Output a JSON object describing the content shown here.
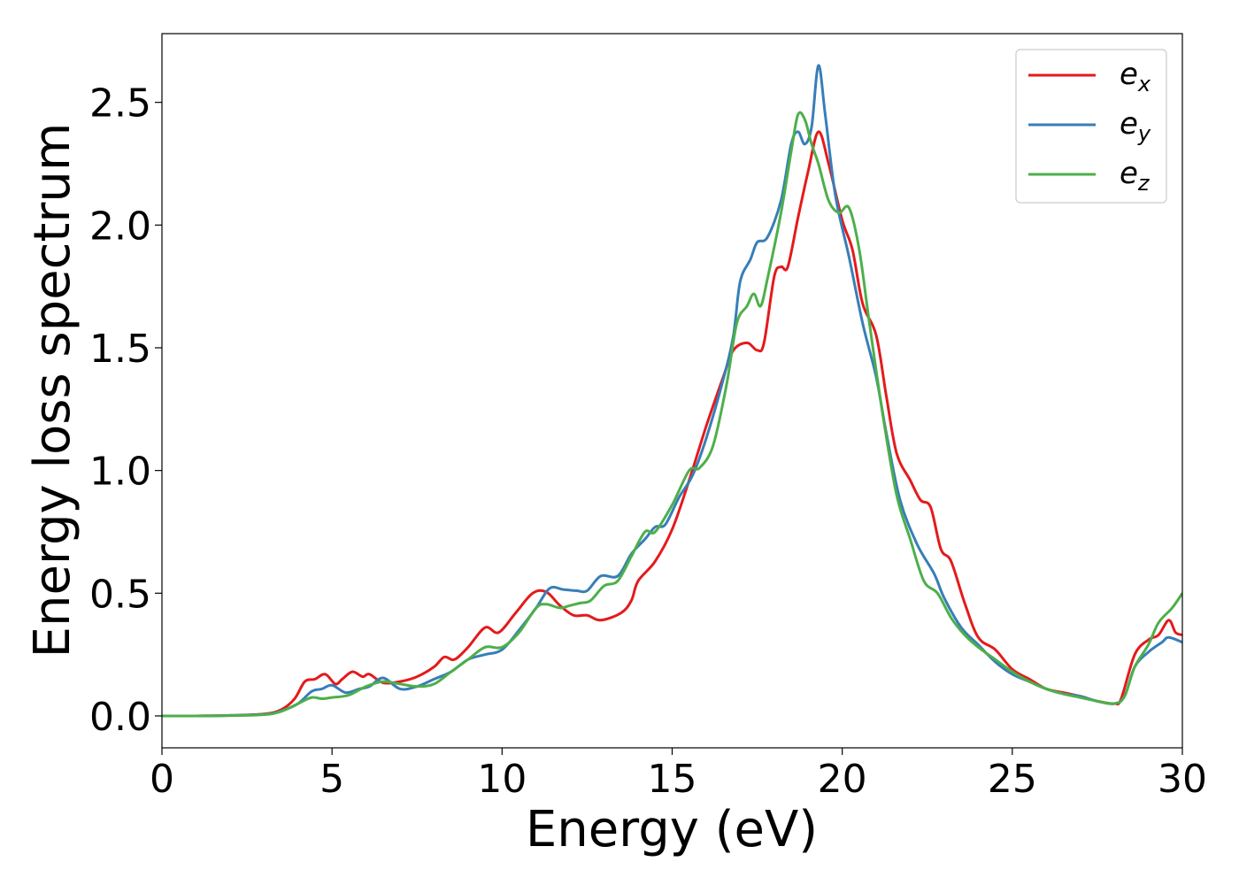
{
  "chart_data": {
    "type": "line",
    "xlabel": "Energy (eV)",
    "ylabel": "Energy loss spectrum",
    "xlim": [
      0,
      30
    ],
    "ylim": [
      -0.13,
      2.78
    ],
    "xticks": [
      0,
      5,
      10,
      15,
      20,
      25,
      30
    ],
    "xtick_labels": [
      "0",
      "5",
      "10",
      "15",
      "20",
      "25",
      "30"
    ],
    "yticks": [
      0.0,
      0.5,
      1.0,
      1.5,
      2.0,
      2.5
    ],
    "ytick_labels": [
      "0.0",
      "0.5",
      "1.0",
      "1.5",
      "2.0",
      "2.5"
    ],
    "grid": false,
    "legend_position": "top-right",
    "series": [
      {
        "name": "e",
        "subscript": "x",
        "color": "#e41a1c",
        "points": [
          [
            0,
            0
          ],
          [
            1,
            0
          ],
          [
            2,
            0.002
          ],
          [
            3,
            0.008
          ],
          [
            3.5,
            0.025
          ],
          [
            3.9,
            0.07
          ],
          [
            4.2,
            0.14
          ],
          [
            4.5,
            0.15
          ],
          [
            4.8,
            0.17
          ],
          [
            5.1,
            0.13
          ],
          [
            5.3,
            0.15
          ],
          [
            5.6,
            0.18
          ],
          [
            5.9,
            0.16
          ],
          [
            6.1,
            0.17
          ],
          [
            6.5,
            0.135
          ],
          [
            7,
            0.14
          ],
          [
            7.5,
            0.16
          ],
          [
            8,
            0.2
          ],
          [
            8.3,
            0.24
          ],
          [
            8.6,
            0.23
          ],
          [
            9,
            0.28
          ],
          [
            9.5,
            0.36
          ],
          [
            9.9,
            0.34
          ],
          [
            10.4,
            0.42
          ],
          [
            10.9,
            0.5
          ],
          [
            11.3,
            0.505
          ],
          [
            11.7,
            0.45
          ],
          [
            12.1,
            0.41
          ],
          [
            12.5,
            0.41
          ],
          [
            12.9,
            0.39
          ],
          [
            13.5,
            0.42
          ],
          [
            13.8,
            0.47
          ],
          [
            14,
            0.55
          ],
          [
            14.5,
            0.63
          ],
          [
            15,
            0.76
          ],
          [
            15.5,
            0.96
          ],
          [
            16,
            1.18
          ],
          [
            16.5,
            1.38
          ],
          [
            16.8,
            1.49
          ],
          [
            17.2,
            1.52
          ],
          [
            17.5,
            1.49
          ],
          [
            17.7,
            1.52
          ],
          [
            18,
            1.79
          ],
          [
            18.2,
            1.83
          ],
          [
            18.4,
            1.83
          ],
          [
            18.7,
            2.03
          ],
          [
            19,
            2.22
          ],
          [
            19.3,
            2.38
          ],
          [
            19.6,
            2.25
          ],
          [
            20,
            2.02
          ],
          [
            20.3,
            1.9
          ],
          [
            20.6,
            1.68
          ],
          [
            21,
            1.55
          ],
          [
            21.3,
            1.3
          ],
          [
            21.6,
            1.07
          ],
          [
            22,
            0.96
          ],
          [
            22.3,
            0.88
          ],
          [
            22.6,
            0.85
          ],
          [
            22.9,
            0.68
          ],
          [
            23.2,
            0.63
          ],
          [
            23.6,
            0.46
          ],
          [
            24,
            0.32
          ],
          [
            24.5,
            0.27
          ],
          [
            25,
            0.19
          ],
          [
            25.5,
            0.15
          ],
          [
            26,
            0.11
          ],
          [
            26.5,
            0.095
          ],
          [
            27,
            0.08
          ],
          [
            27.5,
            0.06
          ],
          [
            28,
            0.05
          ],
          [
            28.2,
            0.07
          ],
          [
            28.6,
            0.25
          ],
          [
            29,
            0.31
          ],
          [
            29.3,
            0.33
          ],
          [
            29.6,
            0.39
          ],
          [
            29.8,
            0.34
          ],
          [
            30,
            0.33
          ]
        ]
      },
      {
        "name": "e",
        "subscript": "y",
        "color": "#377eb8",
        "points": [
          [
            0,
            0
          ],
          [
            1,
            0
          ],
          [
            2,
            0.002
          ],
          [
            3,
            0.006
          ],
          [
            3.5,
            0.02
          ],
          [
            4,
            0.05
          ],
          [
            4.4,
            0.1
          ],
          [
            4.7,
            0.11
          ],
          [
            5,
            0.125
          ],
          [
            5.4,
            0.095
          ],
          [
            5.8,
            0.11
          ],
          [
            6.1,
            0.12
          ],
          [
            6.5,
            0.155
          ],
          [
            7,
            0.11
          ],
          [
            7.5,
            0.12
          ],
          [
            8,
            0.15
          ],
          [
            8.5,
            0.18
          ],
          [
            9,
            0.23
          ],
          [
            9.5,
            0.25
          ],
          [
            10,
            0.27
          ],
          [
            10.5,
            0.35
          ],
          [
            11,
            0.44
          ],
          [
            11.4,
            0.52
          ],
          [
            11.8,
            0.515
          ],
          [
            12.2,
            0.51
          ],
          [
            12.5,
            0.51
          ],
          [
            12.9,
            0.57
          ],
          [
            13.4,
            0.57
          ],
          [
            13.8,
            0.66
          ],
          [
            14.2,
            0.72
          ],
          [
            14.5,
            0.77
          ],
          [
            14.8,
            0.78
          ],
          [
            15.2,
            0.89
          ],
          [
            15.6,
            0.98
          ],
          [
            16,
            1.13
          ],
          [
            16.5,
            1.37
          ],
          [
            16.8,
            1.55
          ],
          [
            17,
            1.77
          ],
          [
            17.3,
            1.86
          ],
          [
            17.5,
            1.93
          ],
          [
            17.8,
            1.95
          ],
          [
            18.2,
            2.1
          ],
          [
            18.5,
            2.33
          ],
          [
            18.7,
            2.38
          ],
          [
            18.9,
            2.33
          ],
          [
            19.1,
            2.4
          ],
          [
            19.3,
            2.65
          ],
          [
            19.5,
            2.45
          ],
          [
            19.8,
            2.12
          ],
          [
            20.2,
            1.87
          ],
          [
            20.6,
            1.6
          ],
          [
            21,
            1.38
          ],
          [
            21.3,
            1.15
          ],
          [
            21.7,
            0.88
          ],
          [
            22.2,
            0.7
          ],
          [
            22.7,
            0.58
          ],
          [
            23,
            0.48
          ],
          [
            23.5,
            0.36
          ],
          [
            24,
            0.29
          ],
          [
            24.5,
            0.22
          ],
          [
            25,
            0.17
          ],
          [
            25.5,
            0.14
          ],
          [
            26,
            0.11
          ],
          [
            26.5,
            0.09
          ],
          [
            27,
            0.08
          ],
          [
            27.5,
            0.06
          ],
          [
            28,
            0.05
          ],
          [
            28.3,
            0.08
          ],
          [
            28.6,
            0.2
          ],
          [
            29,
            0.26
          ],
          [
            29.4,
            0.3
          ],
          [
            29.6,
            0.32
          ],
          [
            30,
            0.3
          ]
        ]
      },
      {
        "name": "e",
        "subscript": "z",
        "color": "#4daf4a",
        "points": [
          [
            0,
            0
          ],
          [
            1,
            0
          ],
          [
            2,
            0.001
          ],
          [
            3,
            0.005
          ],
          [
            3.5,
            0.018
          ],
          [
            4,
            0.05
          ],
          [
            4.4,
            0.075
          ],
          [
            4.7,
            0.07
          ],
          [
            5,
            0.075
          ],
          [
            5.5,
            0.085
          ],
          [
            6,
            0.12
          ],
          [
            6.5,
            0.14
          ],
          [
            7,
            0.13
          ],
          [
            7.5,
            0.12
          ],
          [
            8,
            0.13
          ],
          [
            8.5,
            0.18
          ],
          [
            9,
            0.23
          ],
          [
            9.5,
            0.28
          ],
          [
            10,
            0.28
          ],
          [
            10.5,
            0.34
          ],
          [
            11,
            0.44
          ],
          [
            11.3,
            0.455
          ],
          [
            11.7,
            0.44
          ],
          [
            12,
            0.45
          ],
          [
            12.3,
            0.46
          ],
          [
            12.6,
            0.47
          ],
          [
            13,
            0.53
          ],
          [
            13.4,
            0.55
          ],
          [
            13.8,
            0.65
          ],
          [
            14.2,
            0.75
          ],
          [
            14.5,
            0.75
          ],
          [
            15,
            0.86
          ],
          [
            15.5,
            1.0
          ],
          [
            15.8,
            1.01
          ],
          [
            16.2,
            1.1
          ],
          [
            16.6,
            1.35
          ],
          [
            16.9,
            1.6
          ],
          [
            17.2,
            1.67
          ],
          [
            17.4,
            1.72
          ],
          [
            17.6,
            1.67
          ],
          [
            17.8,
            1.78
          ],
          [
            18.2,
            2.05
          ],
          [
            18.5,
            2.3
          ],
          [
            18.7,
            2.45
          ],
          [
            18.9,
            2.43
          ],
          [
            19.1,
            2.33
          ],
          [
            19.3,
            2.25
          ],
          [
            19.6,
            2.1
          ],
          [
            19.9,
            2.05
          ],
          [
            20.2,
            2.07
          ],
          [
            20.5,
            1.9
          ],
          [
            20.8,
            1.6
          ],
          [
            21.2,
            1.22
          ],
          [
            21.6,
            0.9
          ],
          [
            22,
            0.72
          ],
          [
            22.4,
            0.55
          ],
          [
            22.8,
            0.5
          ],
          [
            23.2,
            0.4
          ],
          [
            23.6,
            0.33
          ],
          [
            24,
            0.28
          ],
          [
            24.5,
            0.23
          ],
          [
            25,
            0.18
          ],
          [
            25.5,
            0.14
          ],
          [
            26,
            0.11
          ],
          [
            26.5,
            0.09
          ],
          [
            27,
            0.075
          ],
          [
            27.5,
            0.06
          ],
          [
            28,
            0.05
          ],
          [
            28.3,
            0.08
          ],
          [
            28.6,
            0.2
          ],
          [
            29,
            0.29
          ],
          [
            29.3,
            0.38
          ],
          [
            29.7,
            0.44
          ],
          [
            30,
            0.5
          ]
        ]
      }
    ]
  }
}
